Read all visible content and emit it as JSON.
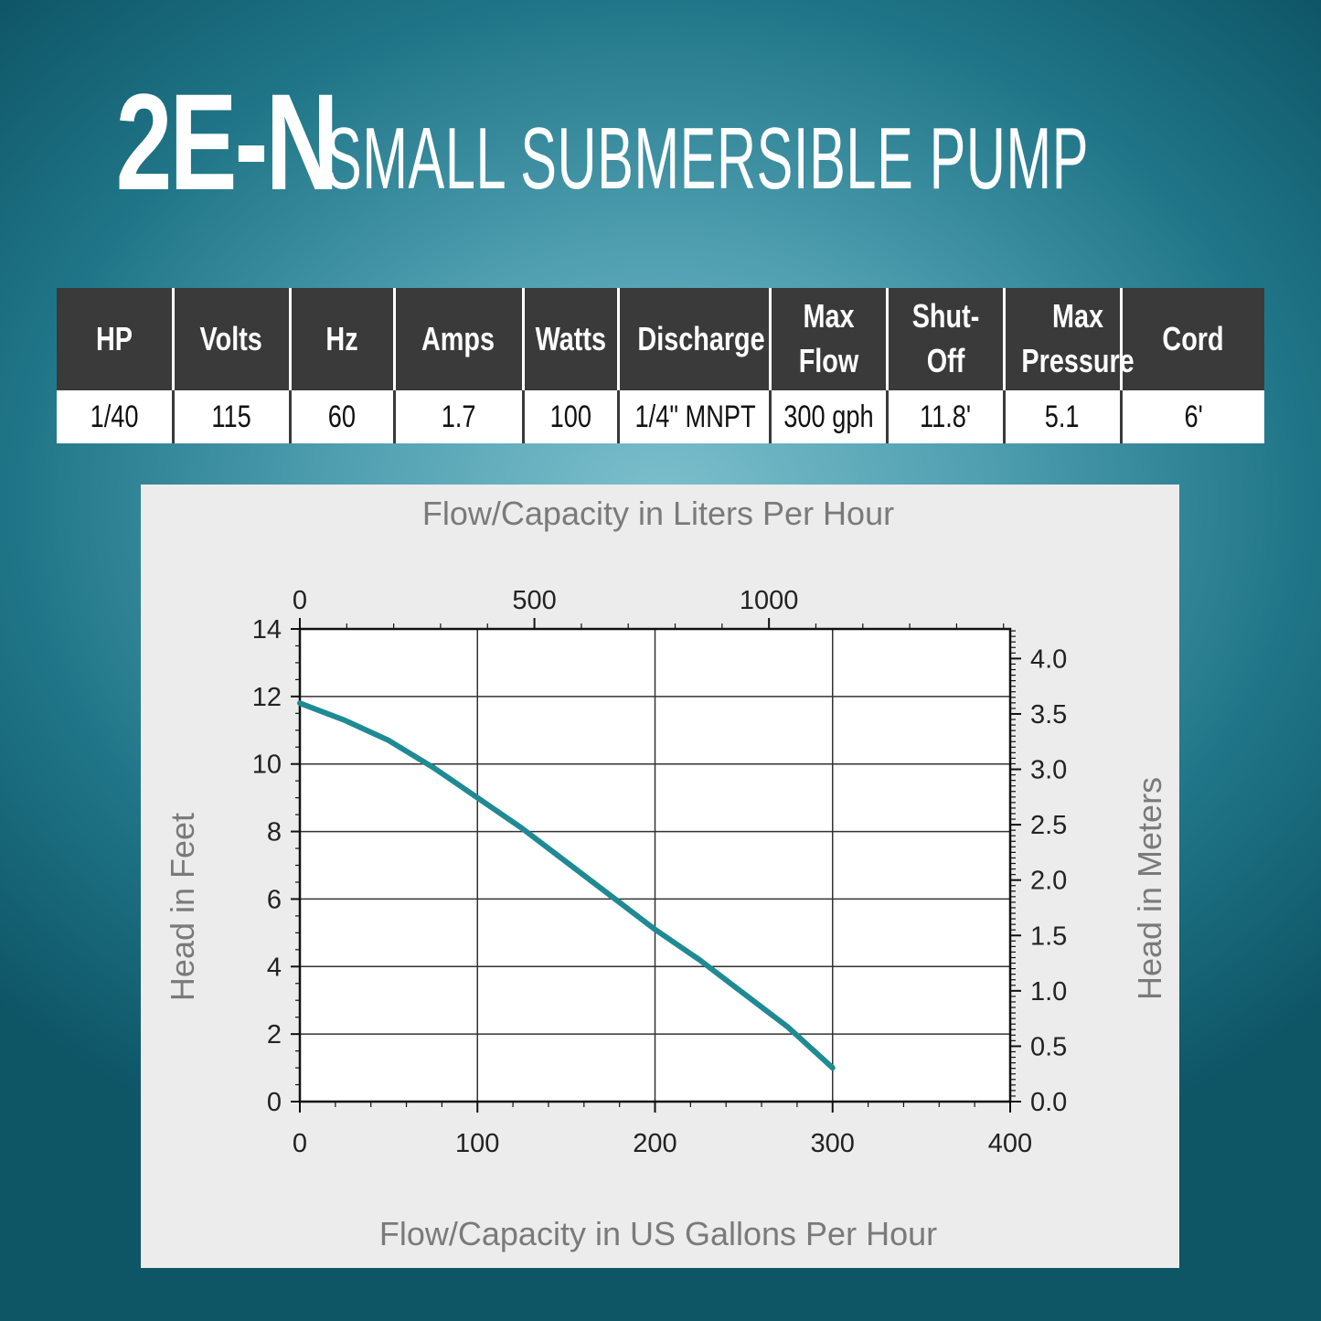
{
  "header": {
    "model": "2E-N",
    "subtitle": "SMALL SUBMERSIBLE PUMP"
  },
  "specs": {
    "headers": [
      "HP",
      "Volts",
      "Hz",
      "Amps",
      "Watts",
      "Discharge",
      "Max Flow",
      "Shut-Off",
      "Max Pressure",
      "Cord"
    ],
    "values": [
      "1/40",
      "115",
      "60",
      "1.7",
      "100",
      "1/4\" MNPT",
      "300 gph",
      "11.8'",
      "5.1",
      "6'"
    ]
  },
  "colors": {
    "curve": "#1f8a94",
    "header_bg": "#3a3a3a"
  },
  "chart_data": {
    "type": "line",
    "x_top_label": "Flow/Capacity in Liters Per Hour",
    "xlabel": "Flow/Capacity in US Gallons Per Hour",
    "ylabel": "Head in Feet",
    "y2label": "Head in Meters",
    "xlim": [
      0,
      400
    ],
    "ylim": [
      0,
      14
    ],
    "x_ticks": [
      "0",
      "100",
      "200",
      "300",
      "400"
    ],
    "x_top_ticks": [
      "0",
      "500",
      "1000"
    ],
    "y_ticks": [
      "0",
      "2",
      "4",
      "6",
      "8",
      "10",
      "12",
      "14"
    ],
    "y2_ticks": [
      "0.0",
      "0.5",
      "1.0",
      "1.5",
      "2.0",
      "2.5",
      "3.0",
      "3.5",
      "4.0"
    ],
    "grid": true,
    "series": [
      {
        "x": [
          0,
          25,
          50,
          75,
          100,
          125,
          150,
          175,
          200,
          225,
          250,
          275,
          300
        ],
        "y": [
          11.8,
          11.3,
          10.7,
          9.9,
          9.0,
          8.1,
          7.1,
          6.1,
          5.1,
          4.2,
          3.2,
          2.2,
          1.0
        ]
      }
    ]
  }
}
